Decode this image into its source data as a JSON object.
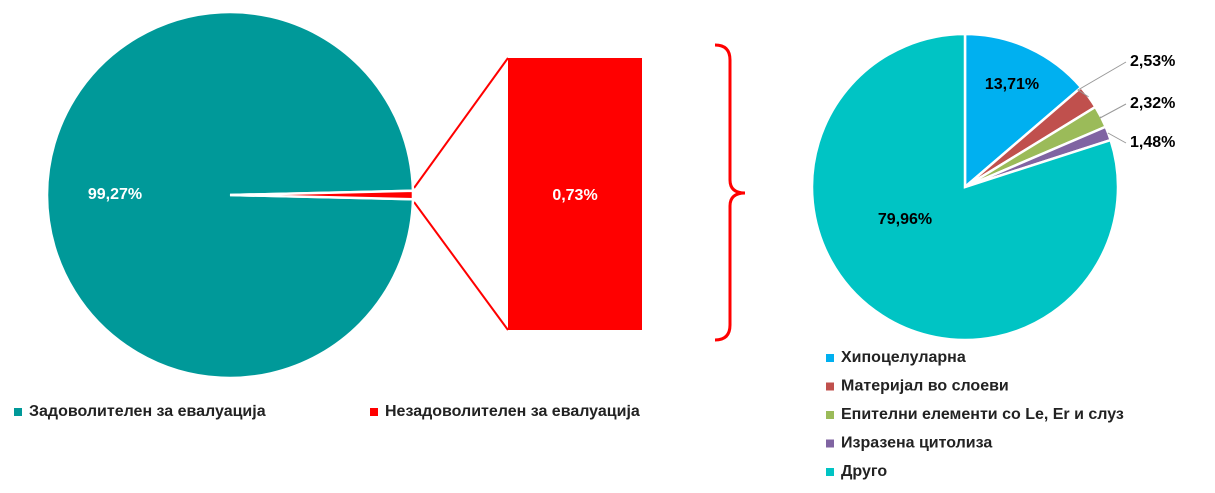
{
  "chart_data": [
    {
      "type": "pie",
      "categories": [
        "Задоволителен за евалуација",
        "Незадоволителен за евалуација"
      ],
      "values": [
        99.27,
        0.73
      ],
      "value_labels": [
        "99,27%",
        null
      ],
      "colors": [
        "#009999",
        "#ff0000"
      ]
    },
    {
      "type": "bar",
      "values": [
        0.73
      ],
      "value_labels": [
        "0,73%"
      ],
      "color": "#ff0000"
    },
    {
      "type": "pie",
      "categories": [
        "Хипоцелуларна",
        "Материјал во слоеви",
        "Епителни елементи со Le, Er и слуз",
        "Изразена цитолиза",
        "Друго"
      ],
      "values": [
        13.71,
        2.53,
        2.32,
        1.48,
        79.96
      ],
      "value_labels": [
        "13,71%",
        "2,53%",
        "2,32%",
        "1,48%",
        "79,96%"
      ],
      "colors": [
        "#00b0f0",
        "#c0504d",
        "#9bbb59",
        "#8064a2",
        "#00c4c4"
      ]
    }
  ]
}
